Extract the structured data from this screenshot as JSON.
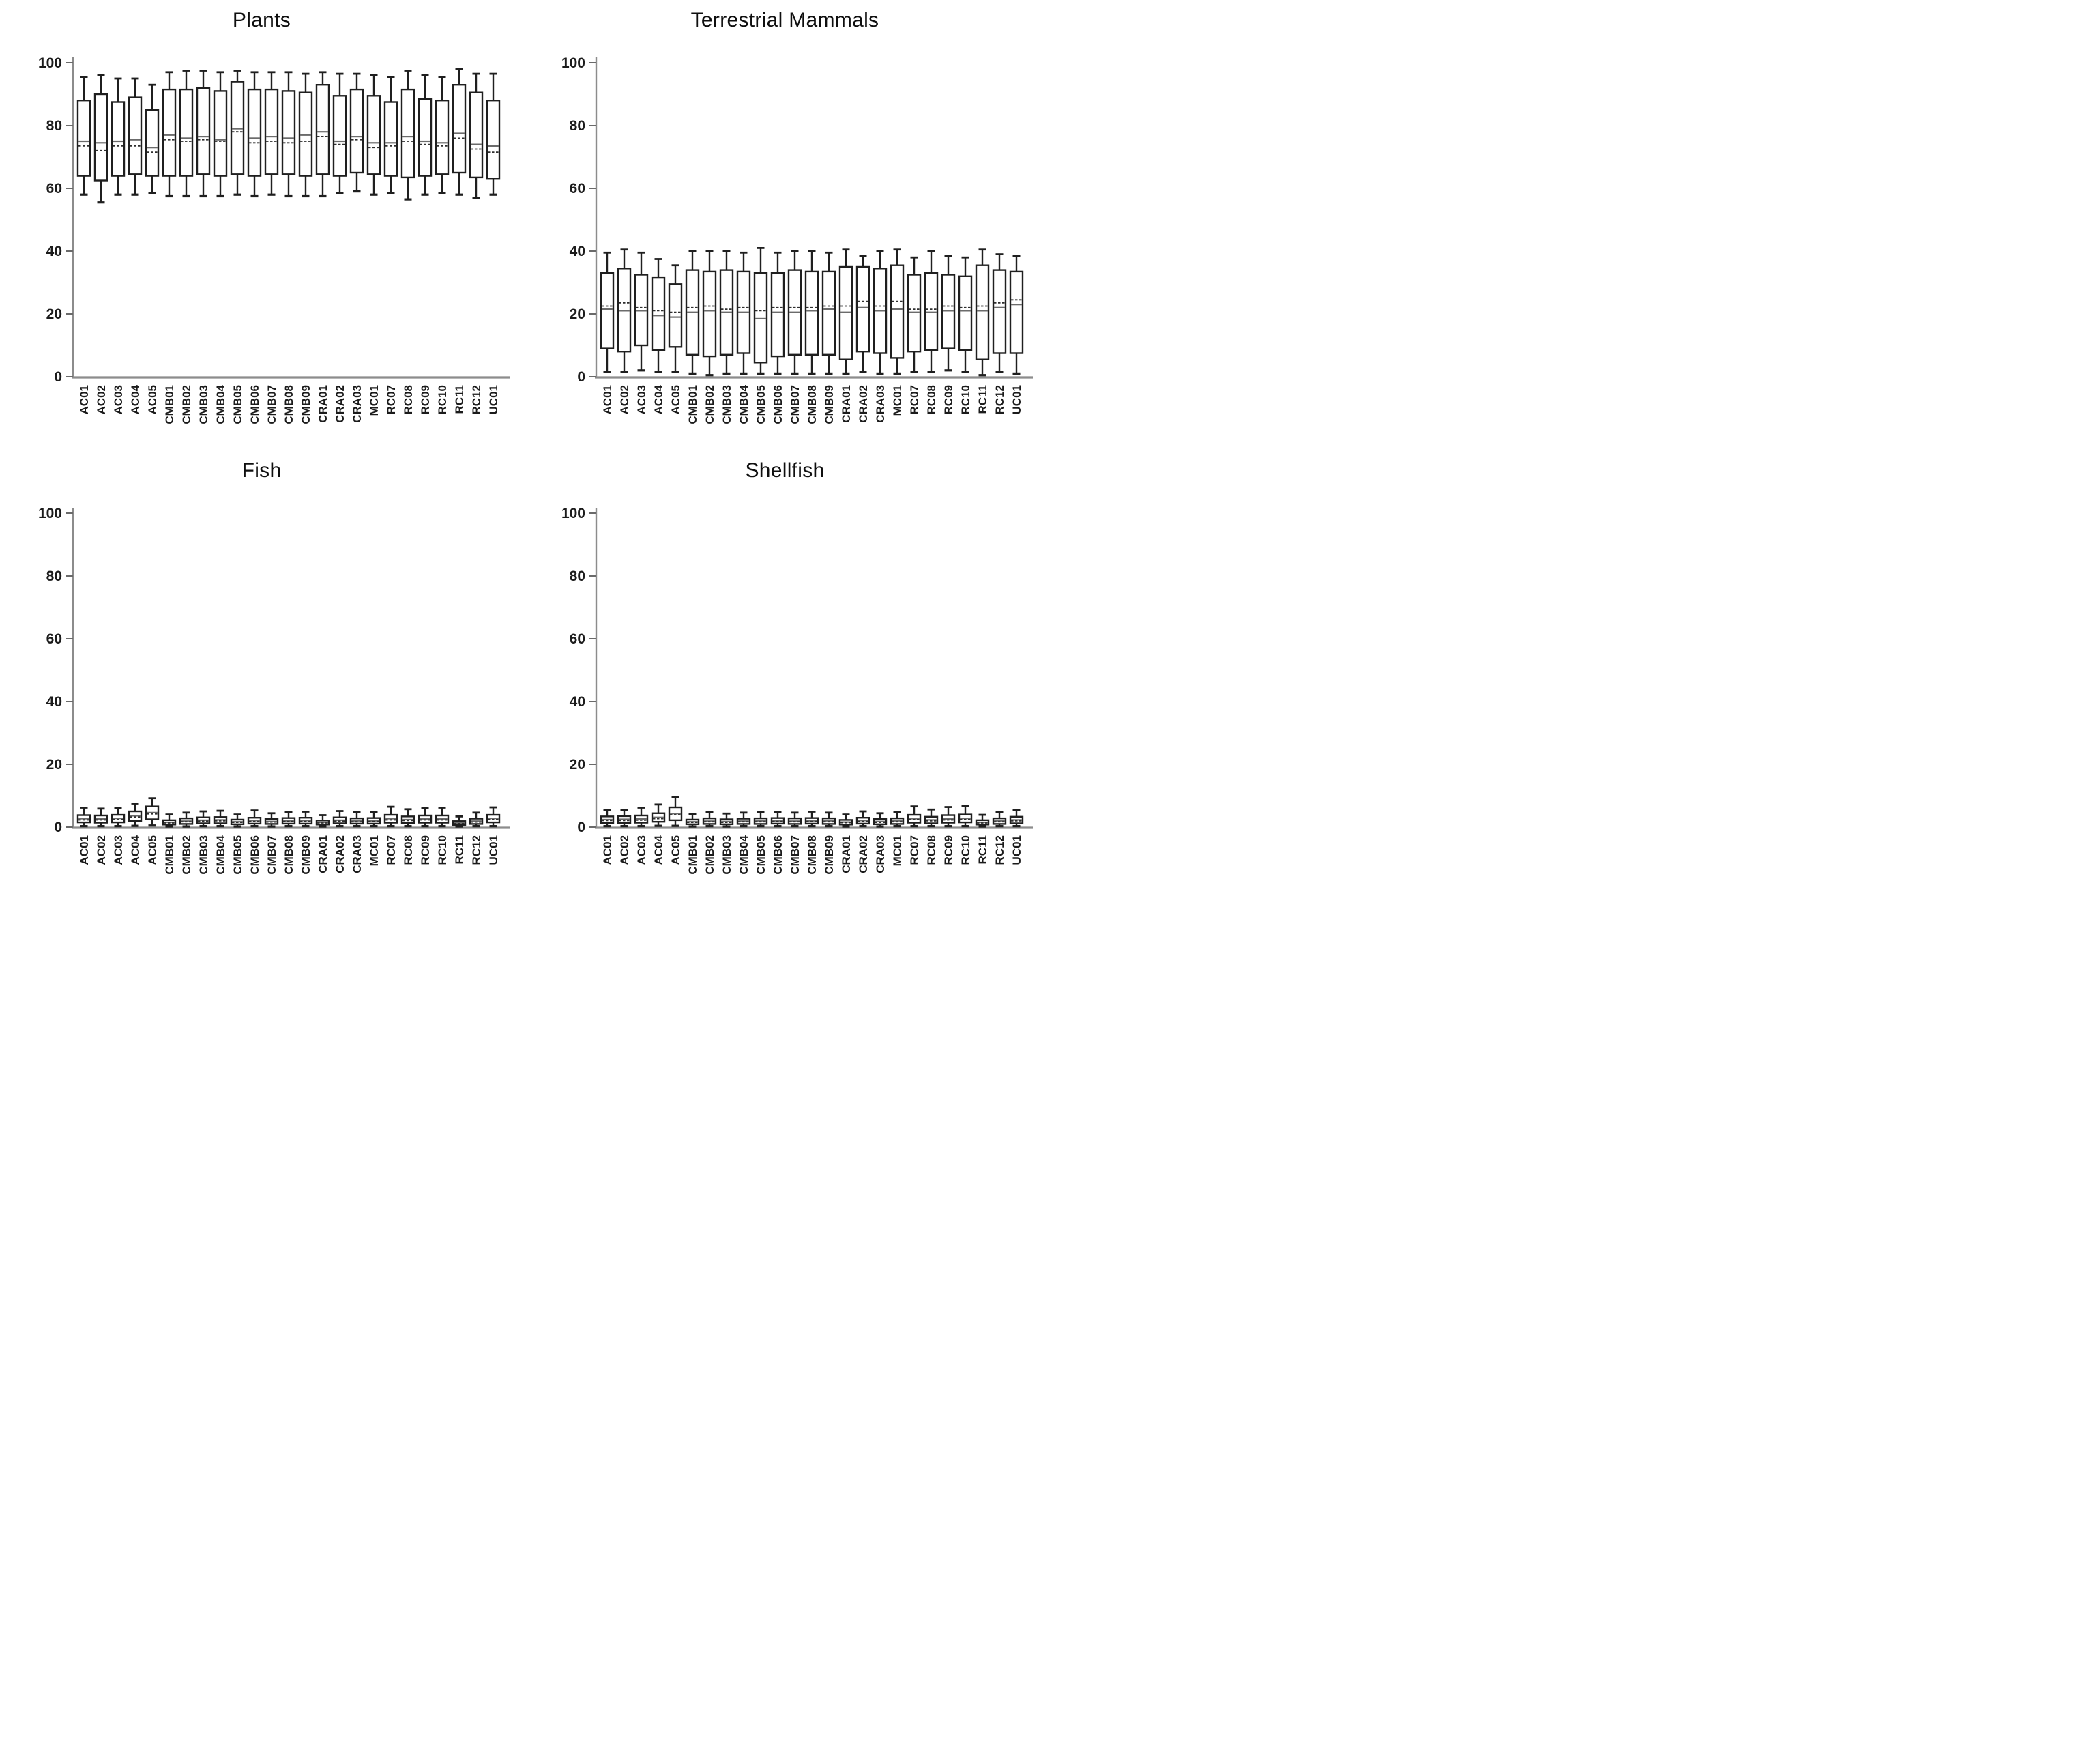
{
  "figure": {
    "background": "#ffffff",
    "layout": "2x2 grid of box-and-whisker panels",
    "line_styles": {
      "median": "solid",
      "mean": "dashed"
    }
  },
  "colors": {
    "box_stroke": "#1f1f1f",
    "box_fill": "#ffffff",
    "median_line": "#6b6b6b",
    "mean_line": "#2e2e2e",
    "axis_line": "#8c8c8c",
    "tick_mark": "#6a6a6a",
    "tick_label": "#1c1c1c",
    "category_label": "#1b1b1b",
    "title": "#0f0f0f"
  },
  "bold_category": "MC01",
  "chart_data": [
    {
      "type": "box",
      "title": "Plants",
      "xlabel": "",
      "ylabel": "",
      "ylim": [
        0,
        100
      ],
      "yticks": [
        0,
        20,
        40,
        60,
        80,
        100
      ],
      "grid": false,
      "legend": "none",
      "box_format": [
        "min",
        "q1",
        "median",
        "mean",
        "q3",
        "max"
      ],
      "categories": [
        "AC01",
        "AC02",
        "AC03",
        "AC04",
        "AC05",
        "CMB01",
        "CMB02",
        "CMB03",
        "CMB04",
        "CMB05",
        "CMB06",
        "CMB07",
        "CMB08",
        "CMB09",
        "CRA01",
        "CRA02",
        "CRA03",
        "MC01",
        "RC07",
        "RC08",
        "RC09",
        "RC10",
        "RC11",
        "RC12",
        "UC01"
      ],
      "boxes": [
        [
          58,
          64,
          75,
          73.5,
          88,
          95.5
        ],
        [
          55.5,
          62.5,
          74.5,
          72,
          90,
          96
        ],
        [
          58,
          64,
          75,
          73.5,
          87.5,
          95
        ],
        [
          58,
          64.5,
          75.5,
          73.5,
          89,
          95
        ],
        [
          58.5,
          64,
          73,
          71.5,
          85,
          93
        ],
        [
          57.5,
          64,
          77,
          75.5,
          91.5,
          97
        ],
        [
          57.5,
          64,
          76,
          75,
          91.5,
          97.5
        ],
        [
          57.5,
          64.5,
          76.5,
          75.5,
          92,
          97.5
        ],
        [
          57.5,
          64,
          75.5,
          75,
          91,
          97
        ],
        [
          58,
          64.5,
          79,
          78,
          94,
          97.5
        ],
        [
          57.5,
          64,
          76,
          74.5,
          91.5,
          97
        ],
        [
          58,
          64.5,
          76.5,
          75,
          91.5,
          97
        ],
        [
          57.5,
          64.5,
          76,
          74.5,
          91,
          97
        ],
        [
          57.5,
          64,
          77,
          75,
          90.5,
          96.5
        ],
        [
          57.5,
          64.5,
          78,
          76.5,
          93,
          97
        ],
        [
          58.5,
          64,
          75,
          74,
          89.5,
          96.5
        ],
        [
          59,
          65,
          76.5,
          75.5,
          91.5,
          96.5
        ],
        [
          58,
          64.5,
          74.5,
          73,
          89.5,
          96
        ],
        [
          58.5,
          64,
          74.5,
          73.5,
          87.5,
          95.5
        ],
        [
          56.5,
          63.5,
          76.5,
          75,
          91.5,
          97.5
        ],
        [
          58,
          64,
          75,
          74,
          88.5,
          96
        ],
        [
          58.5,
          64.5,
          74.5,
          73.5,
          88,
          95.5
        ],
        [
          58,
          65,
          77.5,
          76,
          93,
          98
        ],
        [
          57,
          63.5,
          74,
          72.5,
          90.5,
          96.5
        ],
        [
          58,
          63,
          73.5,
          71.5,
          88,
          96.5
        ]
      ]
    },
    {
      "type": "box",
      "title": "Terrestrial Mammals",
      "xlabel": "",
      "ylabel": "",
      "ylim": [
        0,
        100
      ],
      "yticks": [
        0,
        20,
        40,
        60,
        80,
        100
      ],
      "grid": false,
      "legend": "none",
      "box_format": [
        "min",
        "q1",
        "median",
        "mean",
        "q3",
        "max"
      ],
      "categories": [
        "AC01",
        "AC02",
        "AC03",
        "AC04",
        "AC05",
        "CMB01",
        "CMB02",
        "CMB03",
        "CMB04",
        "CMB05",
        "CMB06",
        "CMB07",
        "CMB08",
        "CMB09",
        "CRA01",
        "CRA02",
        "CRA03",
        "MC01",
        "RC07",
        "RC08",
        "RC09",
        "RC10",
        "RC11",
        "RC12",
        "UC01"
      ],
      "boxes": [
        [
          1.5,
          9,
          21.5,
          22.5,
          33,
          39.5
        ],
        [
          1.5,
          8,
          21,
          23.5,
          34.5,
          40.5
        ],
        [
          2,
          10,
          21,
          22,
          32.5,
          39.5
        ],
        [
          1.5,
          8.5,
          19.5,
          21,
          31.5,
          37.5
        ],
        [
          1.5,
          9.5,
          19,
          20.5,
          29.5,
          35.5
        ],
        [
          1,
          7,
          20.5,
          22,
          34,
          40
        ],
        [
          0.5,
          6.5,
          21,
          22.5,
          33.5,
          40
        ],
        [
          1,
          7,
          20.5,
          21.5,
          34,
          40
        ],
        [
          1,
          7.5,
          20.5,
          22,
          33.5,
          39.5
        ],
        [
          1,
          4.5,
          18.5,
          21,
          33,
          41
        ],
        [
          1,
          6.5,
          20.5,
          22,
          33,
          39.5
        ],
        [
          1,
          7,
          20.5,
          22,
          34,
          40
        ],
        [
          1,
          7,
          21,
          22,
          33.5,
          40
        ],
        [
          1,
          7,
          21.5,
          22.5,
          33.5,
          39.5
        ],
        [
          1,
          5.5,
          20.5,
          22.5,
          35,
          40.5
        ],
        [
          1.5,
          8,
          22,
          24,
          35,
          38.5
        ],
        [
          1,
          7.5,
          21,
          22.5,
          34.5,
          40
        ],
        [
          1,
          6,
          21.5,
          24,
          35.5,
          40.5
        ],
        [
          1.5,
          8,
          20.5,
          21.5,
          32.5,
          38
        ],
        [
          1.5,
          8.5,
          20.5,
          21.5,
          33,
          40
        ],
        [
          2,
          9,
          21,
          22.5,
          32.5,
          38.5
        ],
        [
          1.5,
          8.5,
          21,
          22,
          32,
          38
        ],
        [
          0.5,
          5.5,
          21,
          22.5,
          35.5,
          40.5
        ],
        [
          1.5,
          7.5,
          22,
          23.5,
          34,
          39
        ],
        [
          1,
          7.5,
          23,
          24.5,
          33.5,
          38.5
        ]
      ]
    },
    {
      "type": "box",
      "title": "Fish",
      "xlabel": "",
      "ylabel": "",
      "ylim": [
        0,
        100
      ],
      "yticks": [
        0,
        20,
        40,
        60,
        80,
        100
      ],
      "grid": false,
      "legend": "none",
      "box_format": [
        "min",
        "q1",
        "median",
        "mean",
        "q3",
        "max"
      ],
      "categories": [
        "AC01",
        "AC02",
        "AC03",
        "AC04",
        "AC05",
        "CMB01",
        "CMB02",
        "CMB03",
        "CMB04",
        "CMB05",
        "CMB06",
        "CMB07",
        "CMB08",
        "CMB09",
        "CRA01",
        "CRA02",
        "CRA03",
        "MC01",
        "RC07",
        "RC08",
        "RC09",
        "RC10",
        "RC11",
        "RC12",
        "UC01"
      ],
      "boxes": [
        [
          0.3,
          1.5,
          2.7,
          2.3,
          3.8,
          6.2
        ],
        [
          0.3,
          1.4,
          2.6,
          2.3,
          3.7,
          5.9
        ],
        [
          0.3,
          1.5,
          2.8,
          2.4,
          3.9,
          6.1
        ],
        [
          0.4,
          2.0,
          3.6,
          3.2,
          5.0,
          7.5
        ],
        [
          0.5,
          2.5,
          4.6,
          4.2,
          6.6,
          9.2
        ],
        [
          0.2,
          0.8,
          1.5,
          1.3,
          2.2,
          4.0
        ],
        [
          0.2,
          1.0,
          1.9,
          1.7,
          2.8,
          4.6
        ],
        [
          0.3,
          1.2,
          2.2,
          1.9,
          3.1,
          5.0
        ],
        [
          0.3,
          1.2,
          2.3,
          2.0,
          3.2,
          5.2
        ],
        [
          0.2,
          0.9,
          1.7,
          1.5,
          2.4,
          4.0
        ],
        [
          0.3,
          1.1,
          2.1,
          1.8,
          3.0,
          5.3
        ],
        [
          0.2,
          1.0,
          1.8,
          1.6,
          2.6,
          4.4
        ],
        [
          0.3,
          1.1,
          2.0,
          1.8,
          2.9,
          4.8
        ],
        [
          0.3,
          1.1,
          2.1,
          1.8,
          3.0,
          4.9
        ],
        [
          0.2,
          0.8,
          1.5,
          1.3,
          2.1,
          3.8
        ],
        [
          0.3,
          1.2,
          2.2,
          1.9,
          3.1,
          5.1
        ],
        [
          0.3,
          1.1,
          2.0,
          1.7,
          2.8,
          4.7
        ],
        [
          0.3,
          1.1,
          2.0,
          1.8,
          2.9,
          4.8
        ],
        [
          0.3,
          1.4,
          2.7,
          2.3,
          3.9,
          6.5
        ],
        [
          0.3,
          1.3,
          2.4,
          2.1,
          3.4,
          5.7
        ],
        [
          0.3,
          1.4,
          2.6,
          2.3,
          3.7,
          6.1
        ],
        [
          0.3,
          1.4,
          2.6,
          2.3,
          3.7,
          6.2
        ],
        [
          0.2,
          0.7,
          1.3,
          1.1,
          1.9,
          3.4
        ],
        [
          0.3,
          1.0,
          1.9,
          1.6,
          2.7,
          4.6
        ],
        [
          0.3,
          1.5,
          2.8,
          2.4,
          3.9,
          6.3
        ]
      ]
    },
    {
      "type": "box",
      "title": "Shellfish",
      "xlabel": "",
      "ylabel": "",
      "ylim": [
        0,
        100
      ],
      "yticks": [
        0,
        20,
        40,
        60,
        80,
        100
      ],
      "grid": false,
      "legend": "none",
      "box_format": [
        "min",
        "q1",
        "median",
        "mean",
        "q3",
        "max"
      ],
      "categories": [
        "AC01",
        "AC02",
        "AC03",
        "AC04",
        "AC05",
        "CMB01",
        "CMB02",
        "CMB03",
        "CMB04",
        "CMB05",
        "CMB06",
        "CMB07",
        "CMB08",
        "CMB09",
        "CRA01",
        "CRA02",
        "CRA03",
        "MC01",
        "RC07",
        "RC08",
        "RC09",
        "RC10",
        "RC11",
        "RC12",
        "UC01"
      ],
      "boxes": [
        [
          0.3,
          1.3,
          2.4,
          2.1,
          3.4,
          5.4
        ],
        [
          0.3,
          1.3,
          2.5,
          2.1,
          3.5,
          5.5
        ],
        [
          0.3,
          1.4,
          2.6,
          2.2,
          3.7,
          6.2
        ],
        [
          0.4,
          1.7,
          3.1,
          2.7,
          4.4,
          7.2
        ],
        [
          0.4,
          2.2,
          4.3,
          3.9,
          6.3,
          9.6
        ],
        [
          0.2,
          0.9,
          1.7,
          1.5,
          2.4,
          4.1
        ],
        [
          0.3,
          1.0,
          1.9,
          1.7,
          2.8,
          4.7
        ],
        [
          0.2,
          0.9,
          1.8,
          1.5,
          2.5,
          4.3
        ],
        [
          0.3,
          1.0,
          1.9,
          1.7,
          2.7,
          4.6
        ],
        [
          0.3,
          1.0,
          2.0,
          1.7,
          2.8,
          4.7
        ],
        [
          0.3,
          1.1,
          2.0,
          1.8,
          2.9,
          4.8
        ],
        [
          0.3,
          1.0,
          1.9,
          1.7,
          2.8,
          4.6
        ],
        [
          0.3,
          1.1,
          2.0,
          1.8,
          2.9,
          4.9
        ],
        [
          0.3,
          1.0,
          2.0,
          1.7,
          2.8,
          4.6
        ],
        [
          0.2,
          0.8,
          1.6,
          1.4,
          2.3,
          4.0
        ],
        [
          0.3,
          1.1,
          2.1,
          1.8,
          3.0,
          5.0
        ],
        [
          0.2,
          0.9,
          1.8,
          1.5,
          2.6,
          4.4
        ],
        [
          0.3,
          1.0,
          2.0,
          1.7,
          2.8,
          4.7
        ],
        [
          0.3,
          1.4,
          2.7,
          2.4,
          3.9,
          6.6
        ],
        [
          0.3,
          1.2,
          2.3,
          2.0,
          3.3,
          5.6
        ],
        [
          0.3,
          1.4,
          2.6,
          2.3,
          3.8,
          6.4
        ],
        [
          0.3,
          1.5,
          2.8,
          2.4,
          4.0,
          6.7
        ],
        [
          0.2,
          0.8,
          1.5,
          1.3,
          2.2,
          3.9
        ],
        [
          0.3,
          1.0,
          2.0,
          1.7,
          2.8,
          4.8
        ],
        [
          0.3,
          1.2,
          2.3,
          2.0,
          3.3,
          5.5
        ]
      ]
    }
  ]
}
